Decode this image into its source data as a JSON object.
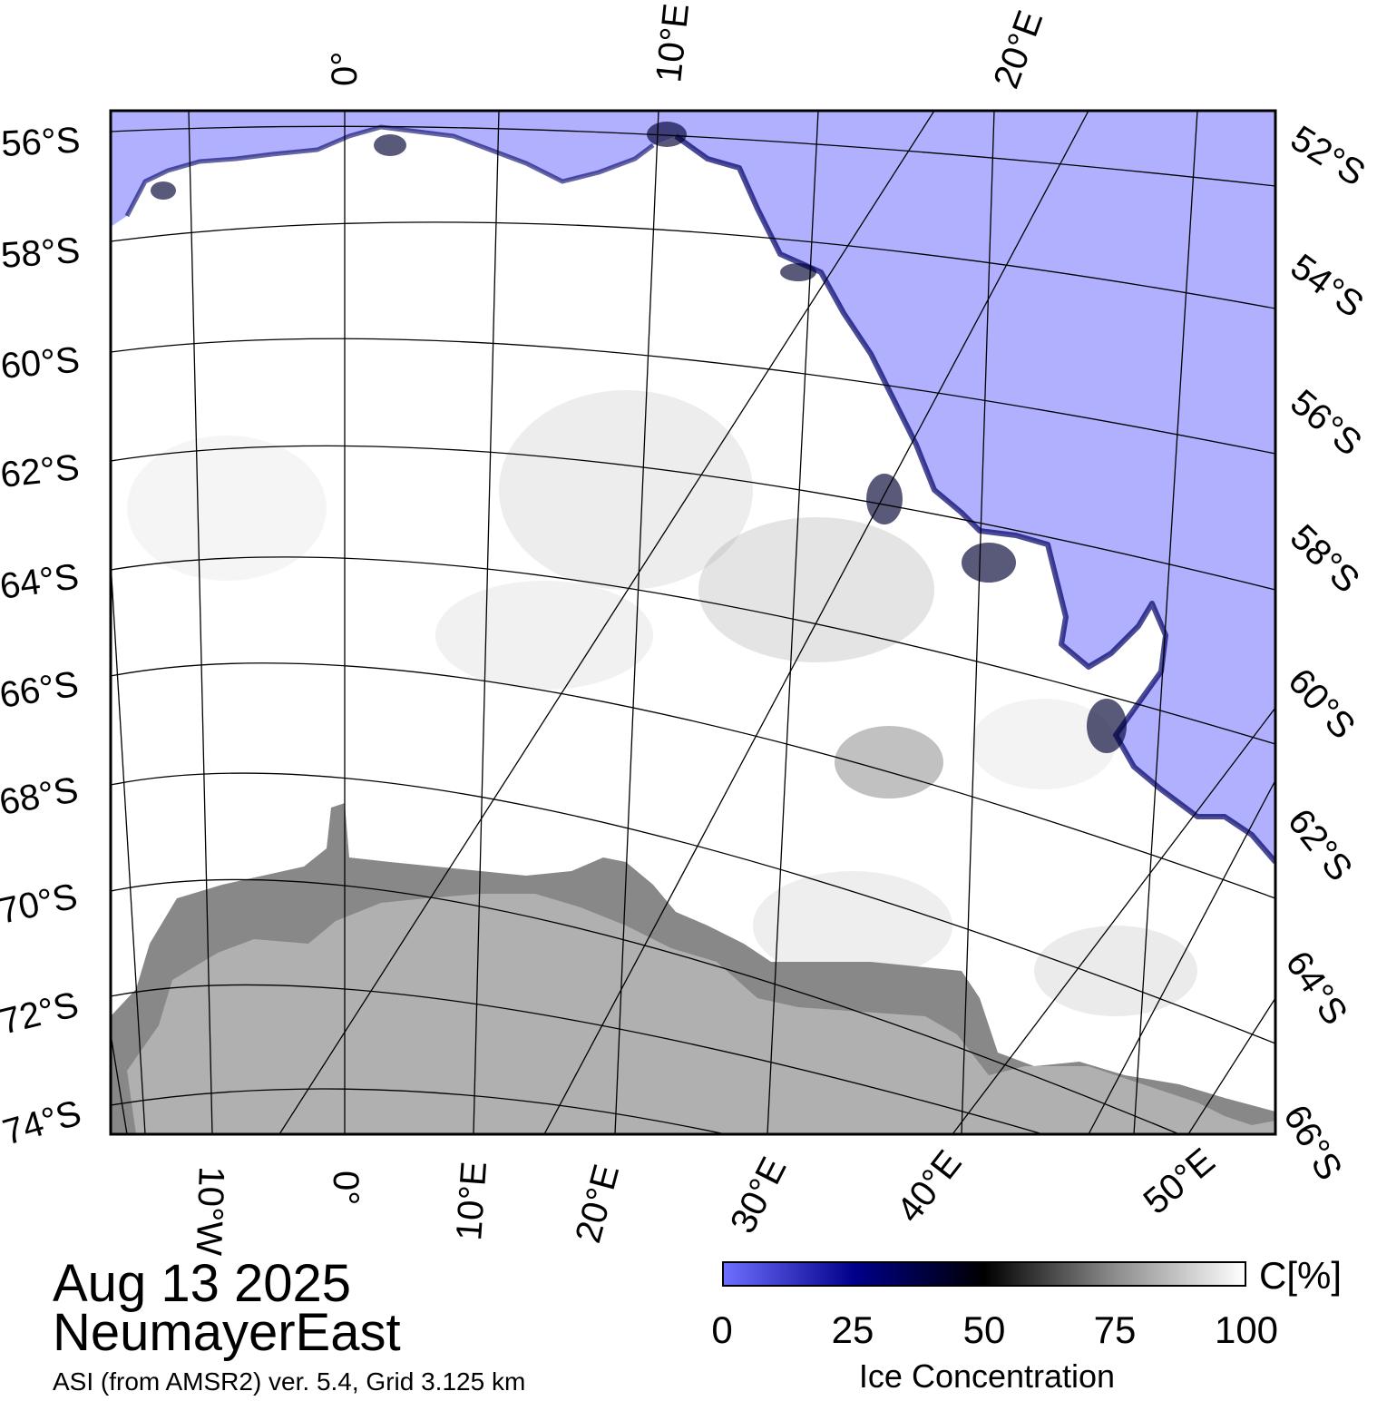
{
  "map": {
    "title_date": "Aug 13 2025",
    "region_name": "NeumayerEast",
    "product_line": "ASI (from AMSR2) ver. 5.4,  Grid 3.125 km",
    "top_lon_labels": [
      "0°",
      "10°E",
      "20°E"
    ],
    "bottom_lon_labels": [
      "10°W",
      "0°",
      "10°E",
      "20°E",
      "30°E",
      "40°E",
      "50°E"
    ],
    "left_lat_labels": [
      "56°S",
      "58°S",
      "60°S",
      "62°S",
      "64°S",
      "66°S",
      "68°S",
      "70°S",
      "72°S",
      "74°S"
    ],
    "right_lat_labels": [
      "52°S",
      "54°S",
      "56°S",
      "58°S",
      "60°S",
      "62°S",
      "64°S",
      "66°S"
    ],
    "colors": {
      "open_water": "#b0b0ff",
      "land": "#b0b0b0",
      "ice_shelf": "#888888",
      "ice_high": "#ffffff",
      "ice_low": "#000066",
      "graticule": "#000000"
    }
  },
  "colorbar": {
    "unit": "C[%]",
    "label": "Ice Concentration",
    "ticks": [
      "0",
      "25",
      "50",
      "75",
      "100"
    ],
    "stops": [
      {
        "value": 0,
        "color": "#6f6fff"
      },
      {
        "value": 25,
        "color": "#00008a"
      },
      {
        "value": 50,
        "color": "#000000"
      },
      {
        "value": 75,
        "color": "#8c8c8c"
      },
      {
        "value": 100,
        "color": "#ffffff"
      }
    ]
  }
}
